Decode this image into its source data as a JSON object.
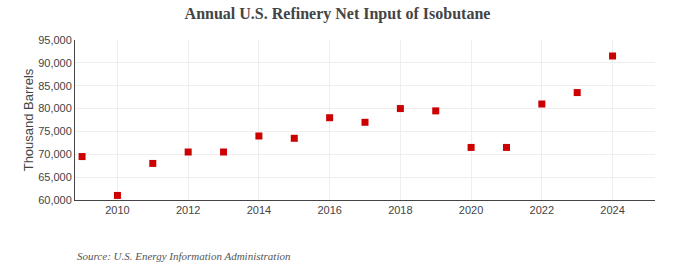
{
  "chart_data": {
    "type": "scatter",
    "title": "Annual U.S. Refinery Net Input of Isobutane",
    "ylabel": "Thousand Barrels",
    "annotations": [
      "Source: U.S. Energy Information Administration"
    ],
    "x": [
      2009,
      2010,
      2011,
      2012,
      2013,
      2014,
      2015,
      2016,
      2017,
      2018,
      2019,
      2020,
      2021,
      2022,
      2023,
      2024
    ],
    "values": [
      69500,
      61000,
      68000,
      70500,
      70500,
      74000,
      73500,
      78000,
      77000,
      80000,
      79500,
      71500,
      71500,
      81000,
      83500,
      91500
    ],
    "color": "#cc0000",
    "marker": "square",
    "ylim": [
      60000,
      95000
    ],
    "yticks": [
      {
        "value": 60000,
        "label": "60,000"
      },
      {
        "value": 65000,
        "label": "65,000"
      },
      {
        "value": 70000,
        "label": "70,000"
      },
      {
        "value": 75000,
        "label": "75,000"
      },
      {
        "value": 80000,
        "label": "80,000"
      },
      {
        "value": 85000,
        "label": "85,000"
      },
      {
        "value": 90000,
        "label": "90,000"
      },
      {
        "value": 95000,
        "label": "95,000"
      }
    ],
    "xlim": [
      2008.8,
      2025.2
    ],
    "xticks": [
      2010,
      2012,
      2014,
      2016,
      2018,
      2020,
      2022,
      2024
    ],
    "grid": true
  }
}
